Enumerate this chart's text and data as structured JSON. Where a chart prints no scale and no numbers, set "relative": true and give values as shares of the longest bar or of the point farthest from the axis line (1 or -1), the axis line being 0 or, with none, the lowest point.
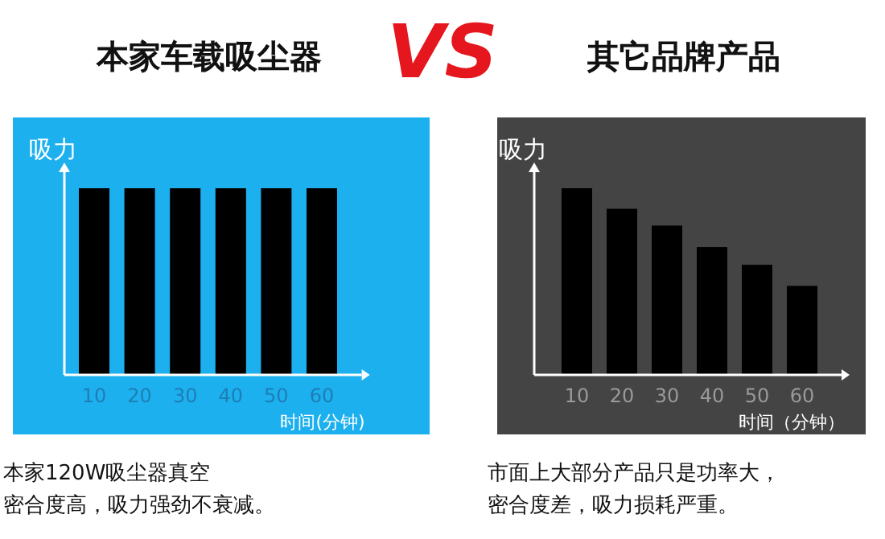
{
  "chart_data": [
    {
      "type": "bar",
      "title": "本家车载吸尘器",
      "ylabel": "吸力",
      "xlabel": "时间(分钟)",
      "categories": [
        "10",
        "20",
        "30",
        "40",
        "50",
        "60"
      ],
      "values": [
        1,
        1,
        1,
        1,
        1,
        1
      ],
      "color": "#000000",
      "relative": true,
      "annotations": [
        "VS",
        "本家120W吸尘器真空",
        "密合度高，吸力强劲不衰减。"
      ]
    },
    {
      "type": "bar",
      "title": "其它品牌产品",
      "ylabel": "吸力",
      "xlabel": "时间（分钟）",
      "categories": [
        "10",
        "20",
        "30",
        "40",
        "50",
        "60"
      ],
      "values": [
        1,
        0.89,
        0.8,
        0.685,
        0.59,
        0.477
      ],
      "color": "#000000",
      "relative": true,
      "annotations": [
        "市面上大部分产品只是功率大，",
        "密合度差，吸力损耗严重。"
      ]
    }
  ]
}
